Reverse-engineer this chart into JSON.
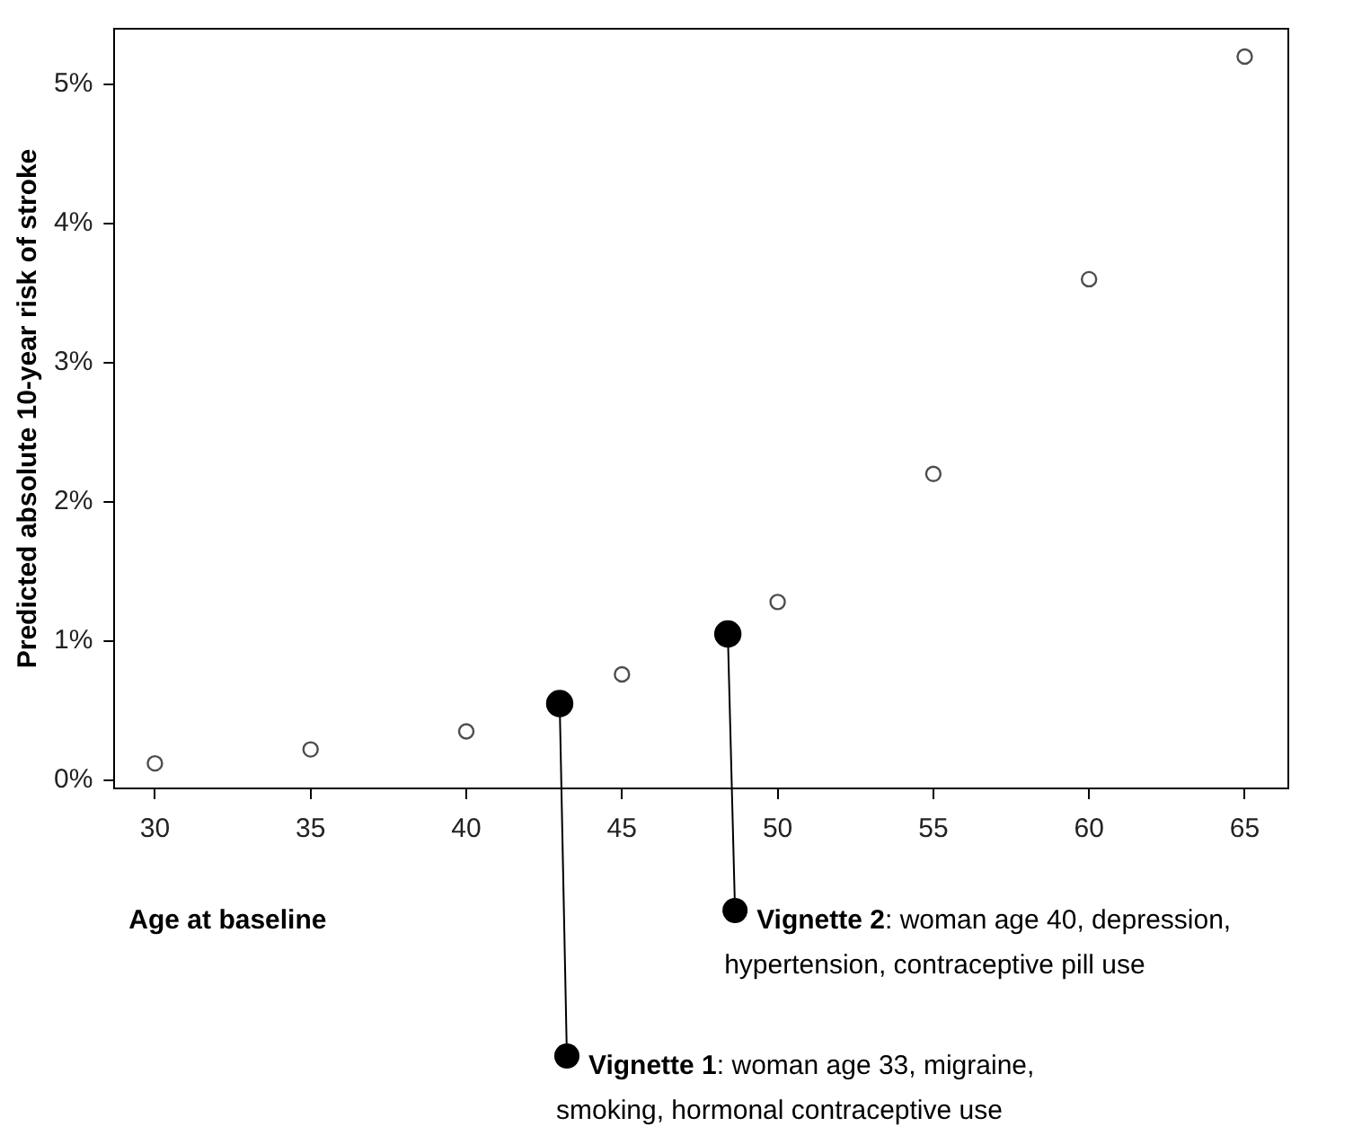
{
  "chart_data": {
    "type": "scatter",
    "ylabel": "Predicted absolute 10-year risk of stroke",
    "xlabel": "Age at baseline",
    "xlim": [
      28.7,
      66.4
    ],
    "xticks": [
      30,
      35,
      40,
      45,
      50,
      55,
      60,
      65
    ],
    "ylim": [
      -0.06,
      5.4
    ],
    "yticks": [
      {
        "value": 0,
        "label": "0%"
      },
      {
        "value": 1,
        "label": "1%"
      },
      {
        "value": 2,
        "label": "2%"
      },
      {
        "value": 3,
        "label": "3%"
      },
      {
        "value": 4,
        "label": "4%"
      },
      {
        "value": 5,
        "label": "5%"
      }
    ],
    "grid": false,
    "legend": false,
    "marker": "circle",
    "series": [
      {
        "color": "#4d4d4d",
        "x": [
          30,
          35,
          40,
          45,
          50,
          55,
          60,
          65
        ],
        "values": [
          0.12,
          0.22,
          0.35,
          0.76,
          1.28,
          2.2,
          3.6,
          5.2
        ]
      },
      {
        "color": "#000000",
        "x": [
          43,
          48.4
        ],
        "values": [
          0.55,
          1.05
        ]
      }
    ],
    "annotations": [
      {
        "text": "Vignette 1: woman age 33, migraine, smoking, hormonal contraceptive use",
        "x": 43,
        "y": 0.55
      },
      {
        "text": "Vignette 2: woman age 40, depression, hypertension, contraceptive pill use",
        "x": 48.4,
        "y": 1.05
      }
    ]
  }
}
